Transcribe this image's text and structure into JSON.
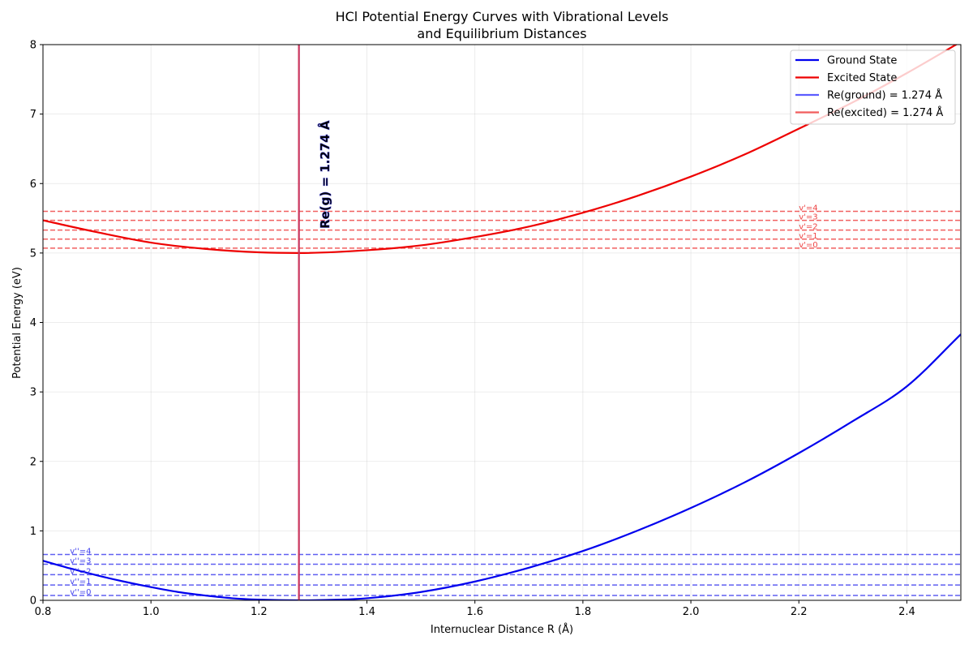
{
  "chart_data": {
    "type": "line",
    "title": [
      "HCl Potential Energy Curves with Vibrational Levels",
      "and Equilibrium Distances"
    ],
    "xlabel": "Internuclear Distance R (Å)",
    "ylabel": "Potential Energy (eV)",
    "xlim": [
      0.8,
      2.5
    ],
    "ylim": [
      0,
      8
    ],
    "xticks": [
      "0.8",
      "1.0",
      "1.2",
      "1.4",
      "1.6",
      "1.8",
      "2.0",
      "2.2",
      "2.4"
    ],
    "xtick_values": [
      0.8,
      1.0,
      1.2,
      1.4,
      1.6,
      1.8,
      2.0,
      2.2,
      2.4
    ],
    "yticks": [
      "0",
      "1",
      "2",
      "3",
      "4",
      "5",
      "6",
      "7",
      "8"
    ],
    "ytick_values": [
      0,
      1,
      2,
      3,
      4,
      5,
      6,
      7,
      8
    ],
    "grid": true,
    "legend_position": "top-right",
    "series": [
      {
        "name": "Ground State",
        "color": "#0000ee",
        "x": [
          0.8,
          0.85,
          0.9,
          0.95,
          1.0,
          1.05,
          1.1,
          1.15,
          1.2,
          1.274,
          1.35,
          1.4,
          1.5,
          1.6,
          1.7,
          1.8,
          1.9,
          2.0,
          2.1,
          2.2,
          2.3,
          2.4,
          2.5
        ],
        "y": [
          0.57,
          0.46,
          0.36,
          0.27,
          0.19,
          0.12,
          0.07,
          0.03,
          0.01,
          0.0,
          0.01,
          0.03,
          0.12,
          0.27,
          0.47,
          0.71,
          1.0,
          1.33,
          1.7,
          2.12,
          2.58,
          3.08,
          3.83
        ]
      },
      {
        "name": "Excited State",
        "color": "#ee0000",
        "x": [
          0.8,
          0.9,
          1.0,
          1.1,
          1.2,
          1.274,
          1.4,
          1.5,
          1.6,
          1.7,
          1.8,
          1.9,
          2.0,
          2.1,
          2.2,
          2.3,
          2.4,
          2.5
        ],
        "y": [
          5.47,
          5.3,
          5.15,
          5.06,
          5.01,
          5.0,
          5.04,
          5.11,
          5.23,
          5.38,
          5.58,
          5.82,
          6.1,
          6.42,
          6.79,
          7.17,
          7.59,
          8.04
        ]
      }
    ],
    "equilibrium": [
      {
        "name": "Re(ground) = 1.274 Å",
        "x": 1.274,
        "color": "#3333ff"
      },
      {
        "name": "Re(excited) = 1.274 Å",
        "x": 1.274,
        "color": "#ee3333"
      }
    ],
    "ground_levels": {
      "color": "#4444ee",
      "values": [
        0.07,
        0.22,
        0.37,
        0.52,
        0.66
      ],
      "labels": [
        "v''=0",
        "v''=1",
        "v''=2",
        "v''=3",
        "v''=4"
      ],
      "label_x": 0.85
    },
    "excited_levels": {
      "color": "#ee4444",
      "values": [
        5.07,
        5.2,
        5.33,
        5.47,
        5.6
      ],
      "labels": [
        "v'=0",
        "v'=1",
        "v'=2",
        "v'=3",
        "v'=4"
      ],
      "label_x": 2.2
    },
    "annotation": {
      "text": "Re(g) = 1.274 Å",
      "x": 1.33,
      "y": 5.35,
      "color": "#cc0044"
    }
  }
}
